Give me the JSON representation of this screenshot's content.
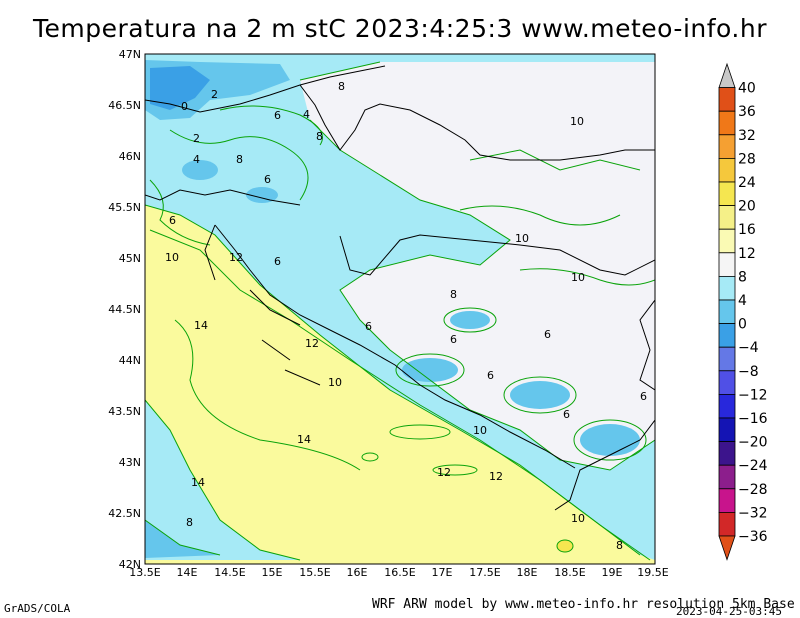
{
  "title": "Temperatura na 2 m stC 2023:4:25:3 www.meteo-info.hr",
  "map": {
    "lon_labels": [
      "13.5E",
      "14E",
      "14.5E",
      "15E",
      "15.5E",
      "16E",
      "16.5E",
      "17E",
      "17.5E",
      "18E",
      "18.5E",
      "19E",
      "19.5E"
    ],
    "lat_labels": [
      "47N",
      "46.5N",
      "46N",
      "45.5N",
      "45N",
      "44.5N",
      "44N",
      "43.5N",
      "43N",
      "42.5N",
      "42N"
    ],
    "contour_labels": [
      "0",
      "2",
      "2",
      "4",
      "4",
      "6",
      "6",
      "6",
      "8",
      "8",
      "8",
      "10",
      "10",
      "10",
      "10",
      "12",
      "12",
      "14",
      "14",
      "14",
      "8",
      "6",
      "12",
      "12",
      "10",
      "8",
      "6",
      "6",
      "6",
      "6",
      "6",
      "6",
      "8",
      "10",
      "10"
    ],
    "colors": {
      "sea": "#fafa9d",
      "warm": "#f5f5f5",
      "mid": "#a6eaf6",
      "cool": "#65c6ec",
      "cold": "#3aa0e6",
      "contour": "#0aa30a",
      "border": "#000000"
    }
  },
  "colorbar": {
    "labels": [
      "40",
      "36",
      "32",
      "28",
      "24",
      "20",
      "16",
      "12",
      "8",
      "4",
      "0",
      "−4",
      "−8",
      "−12",
      "−16",
      "−20",
      "−24",
      "−28",
      "−32",
      "−36"
    ],
    "colors": [
      "#c8c8c8",
      "#e05018",
      "#f07818",
      "#f5a032",
      "#f5c83c",
      "#f5e650",
      "#f5f088",
      "#fafab4",
      "#f5f5f5",
      "#a6eaf6",
      "#65c6ec",
      "#3aa0e6",
      "#6478e6",
      "#5050e6",
      "#2828dc",
      "#1414b4",
      "#3c148c",
      "#8c1e8c",
      "#c8148c",
      "#d22828",
      "#e05018"
    ]
  },
  "footer": {
    "left": "GrADS/COLA",
    "right": "WRF ARW model by www.meteo-info.hr resolution 5km Base",
    "timestamp": "2023-04-25-03:45"
  }
}
